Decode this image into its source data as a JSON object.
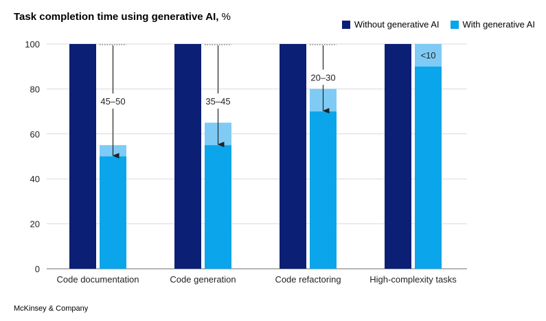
{
  "title": "Task completion time using generative AI,",
  "title_unit": "%",
  "footer": "McKinsey & Company",
  "colors": {
    "without": "#0b1f74",
    "with": "#0aa5ea",
    "range": "#7fcbf5",
    "grid": "#d9d9d9",
    "axis": "#6e6e6e",
    "arrow": "#222222"
  },
  "chart_data": {
    "type": "bar",
    "title": "Task completion time using generative AI, %",
    "categories": [
      "Code documentation",
      "Code generation",
      "Code refactoring",
      "High-complexity tasks"
    ],
    "series": [
      {
        "name": "Without generative AI",
        "values": [
          100,
          100,
          100,
          100
        ]
      },
      {
        "name": "With generative AI",
        "values": [
          50,
          55,
          70,
          90
        ],
        "range_top": [
          55,
          65,
          80,
          100
        ]
      }
    ],
    "reduction_labels": [
      "45–50",
      "35–45",
      "20–30",
      "<10"
    ],
    "ylim": [
      0,
      100
    ],
    "yticks": [
      0,
      20,
      40,
      60,
      80,
      100
    ],
    "grid": true,
    "legend_position": "top-right"
  }
}
